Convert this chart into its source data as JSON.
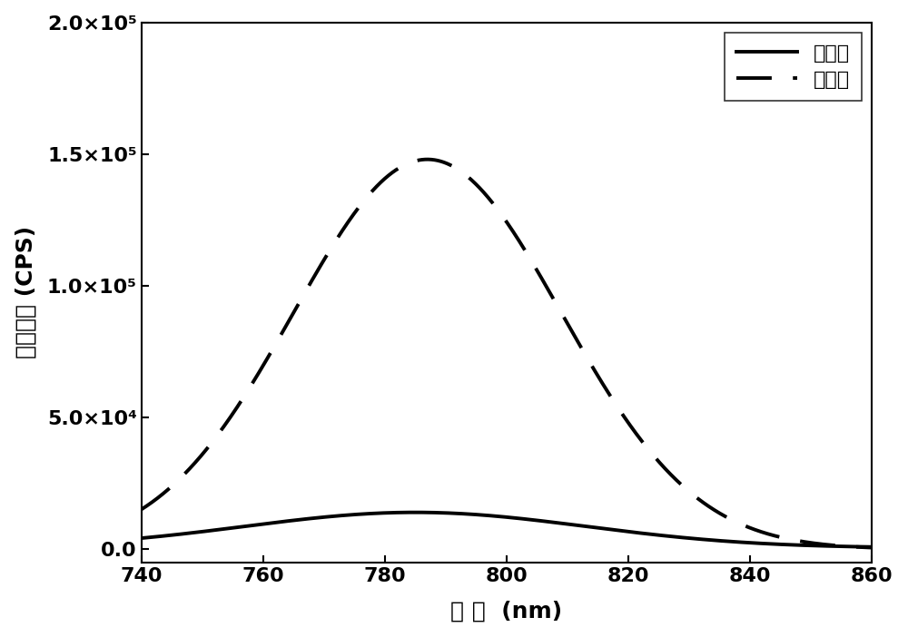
{
  "x_min": 740,
  "x_max": 860,
  "y_min": -5000,
  "y_max": 200000,
  "x_ticks": [
    740,
    760,
    780,
    800,
    820,
    840,
    860
  ],
  "y_ticks": [
    0,
    50000,
    100000,
    150000,
    200000
  ],
  "xlabel": "波 长  (nm)",
  "ylabel": "荧光强度 (CPS)",
  "legend_before": "检测前",
  "legend_after": "检测后",
  "solid_color": "#000000",
  "dashed_color": "#000000",
  "background_color": "#ffffff",
  "dashed_peak_x": 787,
  "dashed_peak_y": 148000,
  "dashed_sigma": 22,
  "solid_peak_x": 785,
  "solid_peak_y": 13500,
  "solid_sigma": 28,
  "solid_baseline": 500,
  "linewidth": 2.8
}
